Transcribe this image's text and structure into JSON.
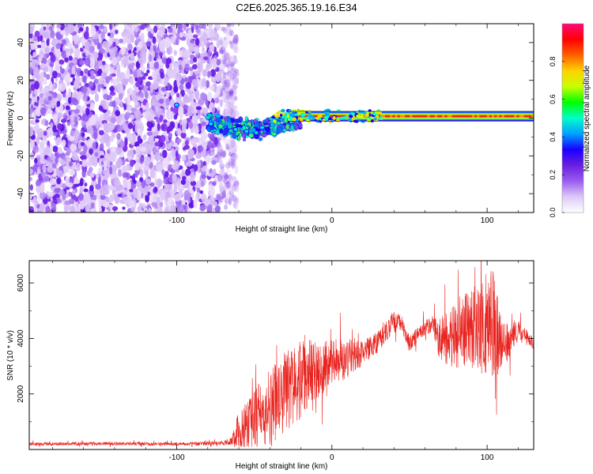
{
  "title": "C2E6.2025.365.19.16.E34",
  "chart_data": [
    {
      "type": "heatmap",
      "name": "spectrogram",
      "xlabel": "Height of straight line (km)",
      "ylabel": "Frequency (Hz)",
      "xlim": [
        -195,
        130
      ],
      "ylim": [
        -50,
        50
      ],
      "x_ticks": [
        -100,
        0,
        100
      ],
      "x_tick_labels": [
        "-100",
        "0",
        "100"
      ],
      "y_ticks": [
        -40,
        -20,
        0,
        20,
        40
      ],
      "y_tick_labels": [
        "-40",
        "-20",
        "0",
        "20",
        "40"
      ],
      "signal_band_hz": [
        0,
        2
      ],
      "noise_extent_km": [
        -195,
        -65
      ],
      "colorbar": {
        "label": "Normalized spectral amplitude",
        "range": [
          0,
          1
        ],
        "ticks": [
          0.0,
          0.2,
          0.4,
          0.6,
          0.8
        ],
        "tick_labels": [
          "0.0",
          "0.2",
          "0.4",
          "0.6",
          "0.8"
        ],
        "colors": [
          "#ffffff",
          "#dcc8f8",
          "#9a5cf0",
          "#6a1ee0",
          "#1a00ff",
          "#00a0ff",
          "#00ffc8",
          "#00ff00",
          "#c8ff00",
          "#ffd200",
          "#ff6000",
          "#ff0000",
          "#ff0a78"
        ]
      }
    },
    {
      "type": "line",
      "name": "snr",
      "xlabel": "Height of straight line (km)",
      "ylabel": "SNR (10 * v/v)",
      "xlim": [
        -195,
        130
      ],
      "ylim": [
        0,
        6800
      ],
      "x_ticks": [
        -100,
        0,
        100
      ],
      "x_tick_labels": [
        "-100",
        "0",
        "100"
      ],
      "y_ticks": [
        2000,
        4000,
        6000
      ],
      "y_tick_labels": [
        "2000",
        "4000",
        "6000"
      ],
      "color": "#e8231e",
      "envelope": {
        "x": [
          -195,
          -150,
          -100,
          -70,
          -65,
          -60,
          -50,
          -40,
          -30,
          -20,
          -10,
          0,
          10,
          20,
          30,
          40,
          45,
          50,
          60,
          65,
          70,
          80,
          90,
          100,
          105,
          110,
          120,
          130
        ],
        "y": [
          200,
          210,
          200,
          230,
          300,
          700,
          1100,
          1500,
          2100,
          2500,
          2900,
          3100,
          3300,
          3500,
          3900,
          4600,
          4500,
          3800,
          4400,
          4500,
          3900,
          4200,
          4300,
          4400,
          4500,
          3700,
          4300,
          3800
        ],
        "amp": [
          60,
          60,
          60,
          70,
          150,
          700,
          1100,
          1400,
          1500,
          1400,
          1100,
          900,
          700,
          500,
          400,
          400,
          300,
          300,
          300,
          300,
          900,
          1300,
          1400,
          1800,
          2000,
          900,
          400,
          200
        ]
      }
    }
  ]
}
